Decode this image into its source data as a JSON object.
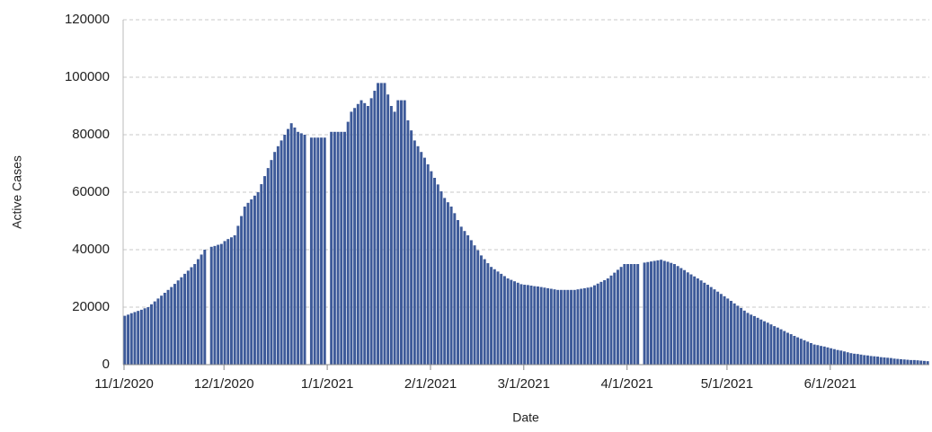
{
  "chart_data": {
    "type": "bar",
    "y_label": "Active Cases",
    "x_label": "Date",
    "categories": [
      "11/1/2020",
      null,
      null,
      null,
      null,
      null,
      null,
      null,
      null,
      null,
      null,
      null,
      null,
      null,
      null,
      null,
      null,
      null,
      null,
      null,
      null,
      null,
      null,
      null,
      null,
      null,
      null,
      null,
      null,
      null,
      "12/1/2020",
      null,
      null,
      null,
      null,
      null,
      null,
      null,
      null,
      null,
      null,
      null,
      null,
      null,
      null,
      null,
      null,
      null,
      null,
      null,
      null,
      null,
      null,
      null,
      null,
      null,
      null,
      null,
      null,
      null,
      null,
      "1/1/2021",
      null,
      null,
      null,
      null,
      null,
      null,
      null,
      null,
      null,
      null,
      null,
      null,
      null,
      null,
      null,
      null,
      null,
      null,
      null,
      null,
      null,
      null,
      null,
      null,
      null,
      null,
      null,
      null,
      null,
      null,
      "2/1/2021",
      null,
      null,
      null,
      null,
      null,
      null,
      null,
      null,
      null,
      null,
      null,
      null,
      null,
      null,
      null,
      null,
      null,
      null,
      null,
      null,
      null,
      null,
      null,
      null,
      null,
      null,
      null,
      "3/1/2021",
      null,
      null,
      null,
      null,
      null,
      null,
      null,
      null,
      null,
      null,
      null,
      null,
      null,
      null,
      null,
      null,
      null,
      null,
      null,
      null,
      null,
      null,
      null,
      null,
      null,
      null,
      null,
      null,
      null,
      null,
      "4/1/2021",
      null,
      null,
      null,
      null,
      null,
      null,
      null,
      null,
      null,
      null,
      null,
      null,
      null,
      null,
      null,
      null,
      null,
      null,
      null,
      null,
      null,
      null,
      null,
      null,
      null,
      null,
      null,
      null,
      null,
      "5/1/2021",
      null,
      null,
      null,
      null,
      null,
      null,
      null,
      null,
      null,
      null,
      null,
      null,
      null,
      null,
      null,
      null,
      null,
      null,
      null,
      null,
      null,
      null,
      null,
      null,
      null,
      null,
      null,
      null,
      null,
      null,
      "6/1/2021",
      null,
      null,
      null,
      null,
      null,
      null,
      null,
      null,
      null,
      null,
      null,
      null,
      null,
      null,
      null,
      null,
      null,
      null,
      null,
      null,
      null,
      null,
      null,
      null,
      null,
      null,
      null,
      null,
      null
    ],
    "values": [
      17000,
      17400,
      17900,
      18300,
      18700,
      19100,
      19600,
      20000,
      21000,
      22000,
      23000,
      24000,
      25000,
      26000,
      27000,
      28100,
      29300,
      30400,
      31600,
      32700,
      33900,
      35000,
      36700,
      38300,
      40000,
      null,
      41000,
      41300,
      41700,
      42000,
      43000,
      43700,
      44300,
      45000,
      48300,
      51700,
      55000,
      56300,
      57500,
      58800,
      60000,
      62800,
      65600,
      68400,
      71200,
      74000,
      76000,
      78000,
      80000,
      82000,
      84000,
      82500,
      81000,
      80500,
      80000,
      null,
      79000,
      79000,
      79000,
      79000,
      79000,
      null,
      81000,
      81000,
      81000,
      81000,
      81000,
      84500,
      88000,
      89300,
      90700,
      92000,
      91000,
      90000,
      92700,
      95300,
      98000,
      98000,
      98000,
      94000,
      90000,
      88000,
      92000,
      92000,
      92000,
      85000,
      81500,
      78000,
      76000,
      74000,
      72000,
      69700,
      67300,
      65000,
      62700,
      60300,
      58000,
      56500,
      55000,
      52700,
      50300,
      48000,
      46500,
      45000,
      43300,
      41500,
      39800,
      38000,
      36700,
      35300,
      34000,
      33200,
      32400,
      31600,
      30800,
      30000,
      29500,
      29000,
      28500,
      28000,
      27800,
      27700,
      27500,
      27300,
      27200,
      27000,
      26800,
      26600,
      26400,
      26200,
      26000,
      26000,
      26000,
      26000,
      26000,
      26000,
      26200,
      26400,
      26600,
      26800,
      27000,
      27600,
      28200,
      28800,
      29400,
      30000,
      31000,
      32000,
      33000,
      34000,
      35000,
      35000,
      35000,
      35000,
      35000,
      null,
      35500,
      35700,
      35900,
      36100,
      36300,
      36500,
      36100,
      35800,
      35400,
      35000,
      34300,
      33600,
      32900,
      32100,
      31400,
      30700,
      30000,
      29300,
      28500,
      27800,
      27000,
      26200,
      25400,
      24600,
      23800,
      23000,
      22200,
      21300,
      20500,
      19700,
      18800,
      18000,
      17400,
      16900,
      16300,
      15700,
      15100,
      14600,
      14000,
      13400,
      12900,
      12300,
      11700,
      11100,
      10600,
      10000,
      9500,
      9000,
      8500,
      8000,
      7500,
      7000,
      6800,
      6500,
      6300,
      6000,
      5700,
      5400,
      5100,
      4900,
      4600,
      4300,
      4000,
      3800,
      3700,
      3500,
      3300,
      3200,
      3000,
      2900,
      2800,
      2600,
      2500,
      2400,
      2300,
      2100,
      2000,
      1900,
      1800,
      1700,
      1600,
      1600,
      1500,
      1400,
      1300,
      1200
    ],
    "color": "#3d5a99",
    "ylim": [
      0,
      120000
    ],
    "yticks": [
      0,
      20000,
      40000,
      60000,
      80000,
      100000,
      120000
    ],
    "grid": true
  }
}
